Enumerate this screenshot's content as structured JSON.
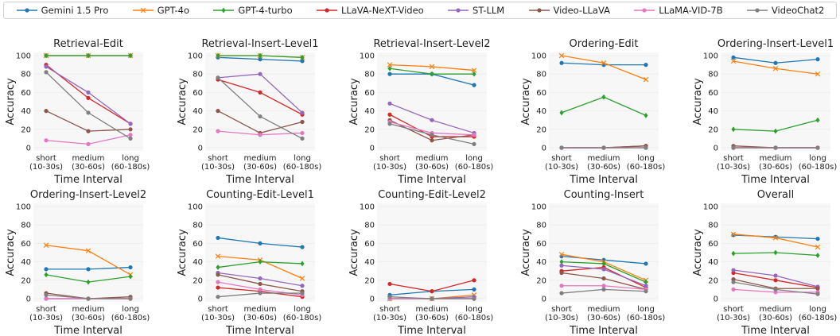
{
  "legend": {
    "series": [
      {
        "name": "Gemini 1.5 Pro",
        "color": "#1f77b4",
        "marker": "circle"
      },
      {
        "name": "GPT-4o",
        "color": "#ff7f0e",
        "marker": "x"
      },
      {
        "name": "GPT-4-turbo",
        "color": "#2ca02c",
        "marker": "diamond"
      },
      {
        "name": "LLaVA-NeXT-Video",
        "color": "#d62728",
        "marker": "circle"
      },
      {
        "name": "ST-LLM",
        "color": "#9467bd",
        "marker": "circle"
      },
      {
        "name": "Video-LLaVA",
        "color": "#8c564b",
        "marker": "circle"
      },
      {
        "name": "LLaMA-VID-7B",
        "color": "#e377c2",
        "marker": "circle"
      },
      {
        "name": "VideoChat2",
        "color": "#7f7f7f",
        "marker": "circle"
      }
    ]
  },
  "chart_data": [
    {
      "type": "line",
      "title": "Retrieval-Edit",
      "xlabel": "Time Interval",
      "ylabel": "Accuracy",
      "categories": [
        [
          "short",
          "(10-30s)"
        ],
        [
          "medium",
          "(30-60s)"
        ],
        [
          "long",
          "(60-180s)"
        ]
      ],
      "ylim": [
        0,
        100
      ],
      "yticks": [
        0,
        20,
        40,
        60,
        80,
        100
      ],
      "series": [
        {
          "name": "Gemini 1.5 Pro",
          "values": [
            100,
            100,
            100
          ]
        },
        {
          "name": "GPT-4o",
          "values": [
            100,
            100,
            100
          ]
        },
        {
          "name": "GPT-4-turbo",
          "values": [
            100,
            100,
            100
          ]
        },
        {
          "name": "LLaVA-NeXT-Video",
          "values": [
            90,
            54,
            26
          ]
        },
        {
          "name": "ST-LLM",
          "values": [
            88,
            60,
            26
          ]
        },
        {
          "name": "Video-LLaVA",
          "values": [
            40,
            18,
            20
          ]
        },
        {
          "name": "LLaMA-VID-7B",
          "values": [
            8,
            4,
            14
          ]
        },
        {
          "name": "VideoChat2",
          "values": [
            82,
            38,
            10
          ]
        }
      ]
    },
    {
      "type": "line",
      "title": "Retrieval-Insert-Level1",
      "xlabel": "Time Interval",
      "ylabel": "Accuracy",
      "categories": [
        [
          "short",
          "(10-30s)"
        ],
        [
          "medium",
          "(30-60s)"
        ],
        [
          "long",
          "(60-180s)"
        ]
      ],
      "ylim": [
        0,
        100
      ],
      "yticks": [
        0,
        20,
        40,
        60,
        80,
        100
      ],
      "series": [
        {
          "name": "Gemini 1.5 Pro",
          "values": [
            98,
            96,
            94
          ]
        },
        {
          "name": "GPT-4o",
          "values": [
            100,
            100,
            98
          ]
        },
        {
          "name": "GPT-4-turbo",
          "values": [
            100,
            100,
            98
          ]
        },
        {
          "name": "LLaVA-NeXT-Video",
          "values": [
            74,
            60,
            36
          ]
        },
        {
          "name": "ST-LLM",
          "values": [
            76,
            80,
            38
          ]
        },
        {
          "name": "Video-LLaVA",
          "values": [
            40,
            16,
            28
          ]
        },
        {
          "name": "LLaMA-VID-7B",
          "values": [
            18,
            14,
            16
          ]
        },
        {
          "name": "VideoChat2",
          "values": [
            76,
            34,
            10
          ]
        }
      ]
    },
    {
      "type": "line",
      "title": "Retrieval-Insert-Level2",
      "xlabel": "Time Interval",
      "ylabel": "Accuracy",
      "categories": [
        [
          "short",
          "(10-30s)"
        ],
        [
          "medium",
          "(30-60s)"
        ],
        [
          "long",
          "(60-180s)"
        ]
      ],
      "ylim": [
        0,
        100
      ],
      "yticks": [
        0,
        20,
        40,
        60,
        80,
        100
      ],
      "series": [
        {
          "name": "Gemini 1.5 Pro",
          "values": [
            80,
            80,
            68
          ]
        },
        {
          "name": "GPT-4o",
          "values": [
            90,
            88,
            84
          ]
        },
        {
          "name": "GPT-4-turbo",
          "values": [
            86,
            80,
            80
          ]
        },
        {
          "name": "LLaVA-NeXT-Video",
          "values": [
            36,
            12,
            12
          ]
        },
        {
          "name": "ST-LLM",
          "values": [
            48,
            30,
            16
          ]
        },
        {
          "name": "Video-LLaVA",
          "values": [
            30,
            8,
            14
          ]
        },
        {
          "name": "LLaMA-VID-7B",
          "values": [
            28,
            16,
            14
          ]
        },
        {
          "name": "VideoChat2",
          "values": [
            26,
            14,
            4
          ]
        }
      ]
    },
    {
      "type": "line",
      "title": "Ordering-Edit",
      "xlabel": "Time Interval",
      "ylabel": "Accuracy",
      "categories": [
        [
          "short",
          "(10-30s)"
        ],
        [
          "medium",
          "(30-60s)"
        ],
        [
          "long",
          "(60-180s)"
        ]
      ],
      "ylim": [
        0,
        100
      ],
      "yticks": [
        0,
        20,
        40,
        60,
        80,
        100
      ],
      "series": [
        {
          "name": "Gemini 1.5 Pro",
          "values": [
            92,
            90,
            90
          ]
        },
        {
          "name": "GPT-4o",
          "values": [
            100,
            92,
            74
          ]
        },
        {
          "name": "GPT-4-turbo",
          "values": [
            38,
            55,
            35
          ]
        },
        {
          "name": "LLaVA-NeXT-Video",
          "values": [
            0,
            0,
            2
          ]
        },
        {
          "name": "ST-LLM",
          "values": [
            0,
            0,
            0
          ]
        },
        {
          "name": "Video-LLaVA",
          "values": [
            0,
            0,
            2
          ]
        },
        {
          "name": "LLaMA-VID-7B",
          "values": [
            0,
            0,
            0
          ]
        },
        {
          "name": "VideoChat2",
          "values": [
            0,
            0,
            0
          ]
        }
      ]
    },
    {
      "type": "line",
      "title": "Ordering-Insert-Level1",
      "xlabel": "Time Interval",
      "ylabel": "Accuracy",
      "categories": [
        [
          "short",
          "(10-30s)"
        ],
        [
          "medium",
          "(30-60s)"
        ],
        [
          "long",
          "(60-180s)"
        ]
      ],
      "ylim": [
        0,
        100
      ],
      "yticks": [
        0,
        20,
        40,
        60,
        80,
        100
      ],
      "series": [
        {
          "name": "Gemini 1.5 Pro",
          "values": [
            98,
            92,
            96
          ]
        },
        {
          "name": "GPT-4o",
          "values": [
            94,
            86,
            80
          ]
        },
        {
          "name": "GPT-4-turbo",
          "values": [
            20,
            18,
            30
          ]
        },
        {
          "name": "LLaVA-NeXT-Video",
          "values": [
            0,
            0,
            0
          ]
        },
        {
          "name": "ST-LLM",
          "values": [
            0,
            0,
            0
          ]
        },
        {
          "name": "Video-LLaVA",
          "values": [
            2,
            0,
            0
          ]
        },
        {
          "name": "LLaMA-VID-7B",
          "values": [
            0,
            0,
            0
          ]
        },
        {
          "name": "VideoChat2",
          "values": [
            0,
            0,
            0
          ]
        }
      ]
    },
    {
      "type": "line",
      "title": "Ordering-Insert-Level2",
      "xlabel": "Time Interval",
      "ylabel": "Accuracy",
      "categories": [
        [
          "short",
          "(10-30s)"
        ],
        [
          "medium",
          "(30-60s)"
        ],
        [
          "long",
          "(60-180s)"
        ]
      ],
      "ylim": [
        0,
        100
      ],
      "yticks": [
        0,
        20,
        40,
        60,
        80,
        100
      ],
      "series": [
        {
          "name": "Gemini 1.5 Pro",
          "values": [
            32,
            32,
            34
          ]
        },
        {
          "name": "GPT-4o",
          "values": [
            58,
            52,
            26
          ]
        },
        {
          "name": "GPT-4-turbo",
          "values": [
            26,
            18,
            24
          ]
        },
        {
          "name": "LLaVA-NeXT-Video",
          "values": [
            0,
            0,
            0
          ]
        },
        {
          "name": "ST-LLM",
          "values": [
            0,
            0,
            0
          ]
        },
        {
          "name": "Video-LLaVA",
          "values": [
            6,
            0,
            2
          ]
        },
        {
          "name": "LLaMA-VID-7B",
          "values": [
            0,
            0,
            0
          ]
        },
        {
          "name": "VideoChat2",
          "values": [
            4,
            0,
            0
          ]
        }
      ]
    },
    {
      "type": "line",
      "title": "Counting-Edit-Level1",
      "xlabel": "Time Interval",
      "ylabel": "Accuracy",
      "categories": [
        [
          "short",
          "(10-30s)"
        ],
        [
          "medium",
          "(30-60s)"
        ],
        [
          "long",
          "(60-180s)"
        ]
      ],
      "ylim": [
        0,
        100
      ],
      "yticks": [
        0,
        20,
        40,
        60,
        80,
        100
      ],
      "series": [
        {
          "name": "Gemini 1.5 Pro",
          "values": [
            66,
            60,
            56
          ]
        },
        {
          "name": "GPT-4o",
          "values": [
            46,
            42,
            22
          ]
        },
        {
          "name": "GPT-4-turbo",
          "values": [
            34,
            40,
            38
          ]
        },
        {
          "name": "LLaVA-NeXT-Video",
          "values": [
            12,
            8,
            2
          ]
        },
        {
          "name": "ST-LLM",
          "values": [
            28,
            22,
            14
          ]
        },
        {
          "name": "Video-LLaVA",
          "values": [
            26,
            16,
            8
          ]
        },
        {
          "name": "LLaMA-VID-7B",
          "values": [
            18,
            10,
            4
          ]
        },
        {
          "name": "VideoChat2",
          "values": [
            2,
            6,
            6
          ]
        }
      ]
    },
    {
      "type": "line",
      "title": "Counting-Edit-Level2",
      "xlabel": "Time Interval",
      "ylabel": "Accuracy",
      "categories": [
        [
          "short",
          "(10-30s)"
        ],
        [
          "medium",
          "(30-60s)"
        ],
        [
          "long",
          "(60-180s)"
        ]
      ],
      "ylim": [
        0,
        100
      ],
      "yticks": [
        0,
        20,
        40,
        60,
        80,
        100
      ],
      "series": [
        {
          "name": "Gemini 1.5 Pro",
          "values": [
            4,
            8,
            10
          ]
        },
        {
          "name": "GPT-4o",
          "values": [
            0,
            0,
            4
          ]
        },
        {
          "name": "GPT-4-turbo",
          "values": [
            0,
            0,
            0
          ]
        },
        {
          "name": "LLaVA-NeXT-Video",
          "values": [
            16,
            8,
            20
          ]
        },
        {
          "name": "ST-LLM",
          "values": [
            0,
            0,
            2
          ]
        },
        {
          "name": "Video-LLaVA",
          "values": [
            0,
            0,
            0
          ]
        },
        {
          "name": "LLaMA-VID-7B",
          "values": [
            0,
            0,
            0
          ]
        },
        {
          "name": "VideoChat2",
          "values": [
            2,
            0,
            0
          ]
        }
      ]
    },
    {
      "type": "line",
      "title": "Counting-Insert",
      "xlabel": "Time Interval",
      "ylabel": "Accuracy",
      "categories": [
        [
          "short",
          "(10-30s)"
        ],
        [
          "medium",
          "(30-60s)"
        ],
        [
          "long",
          "(60-180s)"
        ]
      ],
      "ylim": [
        0,
        100
      ],
      "yticks": [
        0,
        20,
        40,
        60,
        80,
        100
      ],
      "series": [
        {
          "name": "Gemini 1.5 Pro",
          "values": [
            46,
            42,
            38
          ]
        },
        {
          "name": "GPT-4o",
          "values": [
            48,
            40,
            20
          ]
        },
        {
          "name": "GPT-4-turbo",
          "values": [
            40,
            38,
            18
          ]
        },
        {
          "name": "LLaVA-NeXT-Video",
          "values": [
            30,
            34,
            12
          ]
        },
        {
          "name": "ST-LLM",
          "values": [
            36,
            32,
            14
          ]
        },
        {
          "name": "Video-LLaVA",
          "values": [
            28,
            22,
            10
          ]
        },
        {
          "name": "LLaMA-VID-7B",
          "values": [
            14,
            14,
            10
          ]
        },
        {
          "name": "VideoChat2",
          "values": [
            6,
            10,
            8
          ]
        }
      ]
    },
    {
      "type": "line",
      "title": "Overall",
      "xlabel": "Time Interval",
      "ylabel": "Accuracy",
      "categories": [
        [
          "short",
          "(10-30s)"
        ],
        [
          "medium",
          "(30-60s)"
        ],
        [
          "long",
          "(60-180s)"
        ]
      ],
      "ylim": [
        0,
        100
      ],
      "yticks": [
        0,
        20,
        40,
        60,
        80,
        100
      ],
      "series": [
        {
          "name": "Gemini 1.5 Pro",
          "values": [
            69,
            67,
            65
          ]
        },
        {
          "name": "GPT-4o",
          "values": [
            70,
            66,
            56
          ]
        },
        {
          "name": "GPT-4-turbo",
          "values": [
            49,
            50,
            47
          ]
        },
        {
          "name": "LLaVA-NeXT-Video",
          "values": [
            28,
            20,
            12
          ]
        },
        {
          "name": "ST-LLM",
          "values": [
            31,
            25,
            13
          ]
        },
        {
          "name": "Video-LLaVA",
          "values": [
            21,
            11,
            11
          ]
        },
        {
          "name": "LLaMA-VID-7B",
          "values": [
            10,
            7,
            7
          ]
        },
        {
          "name": "VideoChat2",
          "values": [
            18,
            10,
            5
          ]
        }
      ]
    }
  ]
}
